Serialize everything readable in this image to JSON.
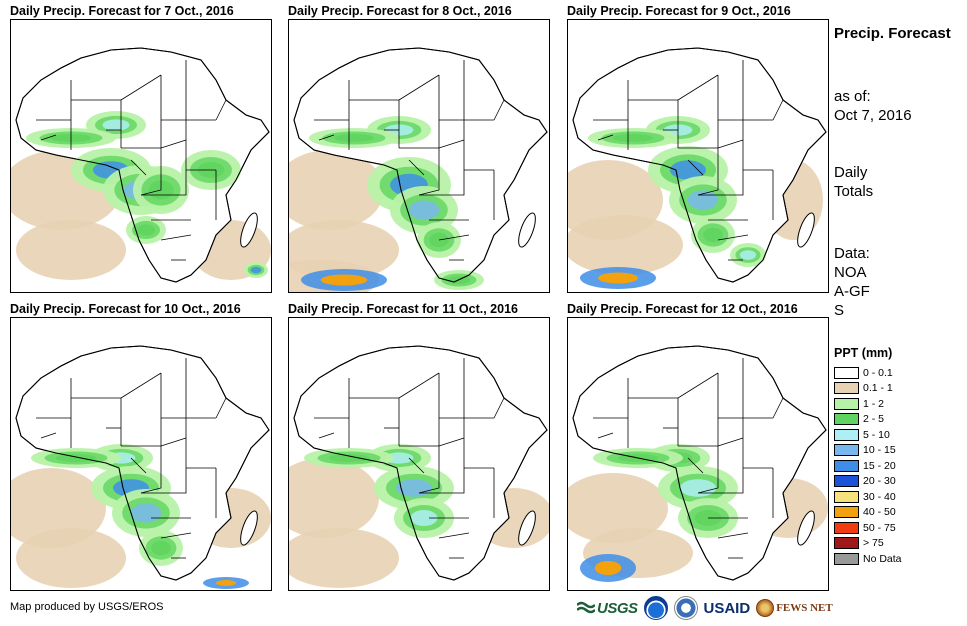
{
  "panels": [
    {
      "title": "Daily Precip. Forecast for 7 Oct., 2016"
    },
    {
      "title": "Daily Precip. Forecast for 8 Oct., 2016"
    },
    {
      "title": "Daily Precip. Forecast for 9 Oct., 2016"
    },
    {
      "title": "Daily Precip. Forecast for 10 Oct., 2016"
    },
    {
      "title": "Daily Precip. Forecast for 11 Oct., 2016"
    },
    {
      "title": "Daily Precip. Forecast for 12 Oct., 2016"
    }
  ],
  "sidebar": {
    "title": "Precip. Forecast",
    "as_of_label": "as of:",
    "as_of_date": "Oct 7, 2016",
    "totals": "Daily Totals",
    "data_label": "Data:",
    "data_source": "NOAA-GFS"
  },
  "legend": {
    "title": "PPT (mm)",
    "items": [
      {
        "label": "0 - 0.1",
        "color": "#ffffff"
      },
      {
        "label": "0.1 - 1",
        "color": "#e8d2b4"
      },
      {
        "label": "1 - 2",
        "color": "#b8f2a8"
      },
      {
        "label": "2 - 5",
        "color": "#5fd45f"
      },
      {
        "label": "5 - 10",
        "color": "#aeeef5"
      },
      {
        "label": "10 - 15",
        "color": "#79b8ef"
      },
      {
        "label": "15 - 20",
        "color": "#3e8ee8"
      },
      {
        "label": "20 - 30",
        "color": "#1c52d8"
      },
      {
        "label": "30 - 40",
        "color": "#f6e27a"
      },
      {
        "label": "40 - 50",
        "color": "#f2a20f"
      },
      {
        "label": "50 - 75",
        "color": "#f03c10"
      },
      {
        "label": "> 75",
        "color": "#a01818"
      },
      {
        "label": "No Data",
        "color": "#999999"
      }
    ]
  },
  "footer": {
    "credit": "Map produced by USGS/EROS",
    "logo_usgs": "USGS",
    "logo_usaid": "USAID",
    "logo_fews": "FEWS NET"
  }
}
